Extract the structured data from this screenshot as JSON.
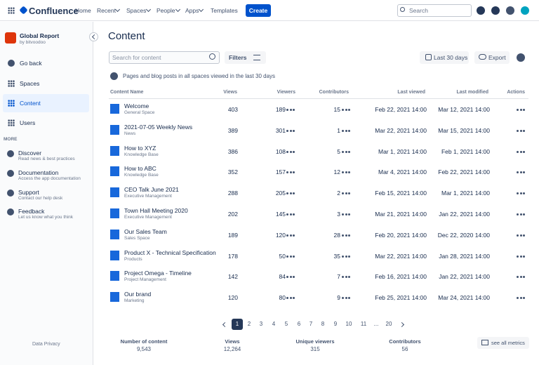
{
  "topnav": {
    "brand": "Confluence",
    "items": [
      "Home",
      "Recent",
      "Spaces",
      "People",
      "Apps",
      "Templates"
    ],
    "create": "Create",
    "search": "Search"
  },
  "sidebar": {
    "app_title": "Global Report",
    "app_by": "by bitvoodoo",
    "nav": [
      "Go back",
      "Spaces",
      "Content",
      "Users"
    ],
    "more": "MORE",
    "links": [
      {
        "title": "Discover",
        "desc": "Read news & best practices"
      },
      {
        "title": "Documentation",
        "desc": "Access the app documentation"
      },
      {
        "title": "Support",
        "desc": "Contact our help desk"
      },
      {
        "title": "Feedback",
        "desc": "Let us know what you think"
      }
    ],
    "footer": "Data Privacy"
  },
  "content": {
    "title": "Content",
    "search_placeholder": "Search for content",
    "filters": "Filters",
    "date_range": "Last 30 days",
    "export": "Export",
    "info": "Pages and blog posts in all spaces viewed in the last 30 days",
    "table": {
      "columns": [
        "Content Name",
        "Views",
        "Viewers",
        "Contributors",
        "Last viewed",
        "Last modified",
        "Actions"
      ],
      "rows": [
        {
          "icon": "page",
          "name": "Welcome",
          "space": "General Space",
          "views": 403,
          "viewers": 189,
          "contributors": 15,
          "last_viewed": "Feb 22, 2021  14:00",
          "last_modified": "Mar 12, 2021  14:00"
        },
        {
          "icon": "blog",
          "name": "2021-07-05 Weekly News",
          "space": "News",
          "views": 389,
          "viewers": 301,
          "contributors": 1,
          "last_viewed": "Mar 22, 2021  14:00",
          "last_modified": "Mar 15, 2021  14:00"
        },
        {
          "icon": "page",
          "name": "How to XYZ",
          "space": "Knowledge Base",
          "views": 386,
          "viewers": 108,
          "contributors": 5,
          "last_viewed": "Mar 1, 2021  14:00",
          "last_modified": "Feb 1, 2021  14:00"
        },
        {
          "icon": "page",
          "name": "How to ABC",
          "space": "Knowledge Base",
          "views": 352,
          "viewers": 157,
          "contributors": 12,
          "last_viewed": "Mar 4, 2021  14:00",
          "last_modified": "Feb 22, 2021  14:00"
        },
        {
          "icon": "blog",
          "name": "CEO Talk June 2021",
          "space": "Executive Management",
          "views": 288,
          "viewers": 205,
          "contributors": 2,
          "last_viewed": "Feb 15, 2021  14:00",
          "last_modified": "Mar 1, 2021  14:00"
        },
        {
          "icon": "blog",
          "name": "Town Hall Meeting 2020",
          "space": "Executive Management",
          "views": 202,
          "viewers": 145,
          "contributors": 3,
          "last_viewed": "Mar 21, 2021  14:00",
          "last_modified": "Jan 22, 2021  14:00"
        },
        {
          "icon": "page",
          "name": "Our Sales Team",
          "space": "Sales Space",
          "views": 189,
          "viewers": 120,
          "contributors": 28,
          "last_viewed": "Feb 20, 2021  14:00",
          "last_modified": "Dec 22, 2020  14:00"
        },
        {
          "icon": "page",
          "name": "Product X - Technical Specification",
          "space": "Products",
          "views": 178,
          "viewers": 50,
          "contributors": 35,
          "last_viewed": "Mar 22, 2021  14:00",
          "last_modified": "Jan 28, 2021  14:00"
        },
        {
          "icon": "page",
          "name": "Project Omega - Timeline",
          "space": "Project Management",
          "views": 142,
          "viewers": 84,
          "contributors": 7,
          "last_viewed": "Feb 16, 2021  14:00",
          "last_modified": "Jan 22, 2021  14:00"
        },
        {
          "icon": "page",
          "name": "Our brand",
          "space": "Marketing",
          "views": 120,
          "viewers": 80,
          "contributors": 9,
          "last_viewed": "Feb 25, 2021  14:00",
          "last_modified": "Mar 24, 2021  14:00"
        }
      ]
    },
    "pagination": [
      1,
      2,
      3,
      4,
      5,
      6,
      7,
      8,
      9,
      10,
      11,
      "...",
      20
    ],
    "summary": [
      {
        "label": "Number of content",
        "value": "9,543"
      },
      {
        "label": "Views",
        "value": "12,264"
      },
      {
        "label": "Unique viewers",
        "value": "315"
      },
      {
        "label": "Contributors",
        "value": "56"
      }
    ],
    "see_all": "see all metrics"
  }
}
